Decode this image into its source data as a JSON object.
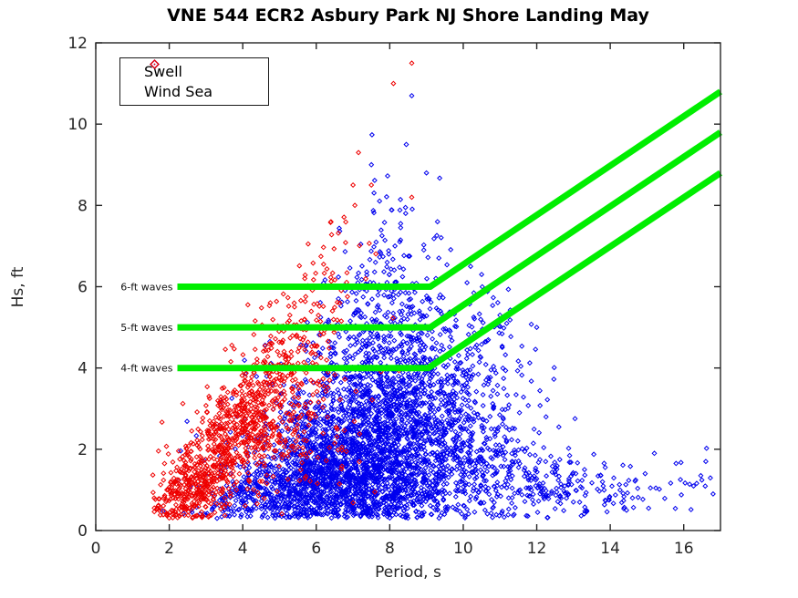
{
  "chart_data": {
    "type": "scatter",
    "title": "VNE 544 ECR2 Asbury Park NJ Shore Landing May",
    "xlabel": "Period, s",
    "ylabel": "Hs, ft",
    "xlim": [
      0,
      17
    ],
    "ylim": [
      0,
      12
    ],
    "xticks": [
      0,
      2,
      4,
      6,
      8,
      10,
      12,
      14,
      16
    ],
    "yticks": [
      0,
      2,
      4,
      6,
      8,
      10,
      12
    ],
    "grid": false,
    "axis_color": "#262626",
    "background": "#ffffff",
    "legend_position": "top-left",
    "seed": 7,
    "series": [
      {
        "name": "Swell",
        "color": "#0000ee",
        "marker": "open-diamond",
        "marker_size": 4.6,
        "clusters": [
          {
            "cx": 7.4,
            "cy": 1.6,
            "sx": 1.55,
            "sy": 0.85,
            "n": 1600
          },
          {
            "cx": 7.8,
            "cy": 2.9,
            "sx": 1.35,
            "sy": 0.85,
            "n": 850
          },
          {
            "cx": 6.3,
            "cy": 1.1,
            "sx": 1.15,
            "sy": 0.5,
            "n": 450
          },
          {
            "cx": 5.0,
            "cy": 0.9,
            "sx": 0.8,
            "sy": 0.45,
            "n": 150
          },
          {
            "cx": 3.6,
            "cy": 0.7,
            "sx": 0.5,
            "sy": 0.35,
            "n": 70
          },
          {
            "cx": 8.0,
            "cy": 4.4,
            "sx": 1.0,
            "sy": 0.8,
            "n": 300
          },
          {
            "cx": 8.1,
            "cy": 5.6,
            "sx": 0.85,
            "sy": 0.7,
            "n": 110
          },
          {
            "cx": 8.2,
            "cy": 6.9,
            "sx": 0.75,
            "sy": 0.75,
            "n": 45
          },
          {
            "cx": 8.2,
            "cy": 8.0,
            "sx": 0.6,
            "sy": 0.5,
            "n": 12
          },
          {
            "cx": 9.6,
            "cy": 3.6,
            "sx": 0.7,
            "sy": 0.9,
            "n": 120
          },
          {
            "cx": 10.6,
            "cy": 4.4,
            "sx": 0.75,
            "sy": 0.85,
            "n": 60
          },
          {
            "cx": 11.5,
            "cy": 3.6,
            "sx": 0.6,
            "sy": 0.6,
            "n": 25
          },
          {
            "cx": 10.9,
            "cy": 1.5,
            "sx": 0.9,
            "sy": 0.65,
            "n": 220
          },
          {
            "cx": 12.3,
            "cy": 1.2,
            "sx": 0.8,
            "sy": 0.45,
            "n": 90
          },
          {
            "cx": 13.9,
            "cy": 1.0,
            "sx": 0.6,
            "sy": 0.3,
            "n": 35
          },
          {
            "cx": 14.6,
            "cy": 0.9,
            "sx": 0.4,
            "sy": 0.25,
            "n": 20
          },
          {
            "cx": 16.1,
            "cy": 1.2,
            "sx": 0.5,
            "sy": 0.4,
            "n": 18
          }
        ],
        "outliers": [
          [
            8.6,
            10.7
          ],
          [
            8.45,
            9.5
          ],
          [
            9.0,
            8.8
          ],
          [
            7.5,
            9.0
          ],
          [
            9.3,
            7.6
          ],
          [
            10.2,
            6.5
          ],
          [
            10.5,
            6.3
          ],
          [
            11.0,
            5.3
          ],
          [
            12.0,
            5.0
          ],
          [
            13.3,
            1.5
          ],
          [
            15.2,
            1.9
          ],
          [
            16.6,
            1.7
          ],
          [
            16.8,
            0.9
          ],
          [
            2.9,
            0.35
          ],
          [
            3.3,
            0.3
          ],
          [
            2.6,
            0.5
          ]
        ]
      },
      {
        "name": "Wind Sea",
        "color": "#ee0000",
        "marker": "open-diamond",
        "marker_size": 4.6,
        "clusters": [
          {
            "cx": 2.2,
            "cy": 0.7,
            "sx": 0.35,
            "sy": 0.3,
            "n": 90
          },
          {
            "cx": 2.7,
            "cy": 1.1,
            "sx": 0.45,
            "sy": 0.45,
            "n": 220
          },
          {
            "cx": 3.4,
            "cy": 1.9,
            "sx": 0.5,
            "sy": 0.55,
            "n": 240
          },
          {
            "cx": 4.1,
            "cy": 2.7,
            "sx": 0.55,
            "sy": 0.6,
            "n": 210
          },
          {
            "cx": 4.8,
            "cy": 3.5,
            "sx": 0.55,
            "sy": 0.65,
            "n": 150
          },
          {
            "cx": 5.4,
            "cy": 4.4,
            "sx": 0.5,
            "sy": 0.6,
            "n": 85
          },
          {
            "cx": 5.9,
            "cy": 5.3,
            "sx": 0.5,
            "sy": 0.6,
            "n": 45
          },
          {
            "cx": 6.3,
            "cy": 6.2,
            "sx": 0.5,
            "sy": 0.55,
            "n": 22
          },
          {
            "cx": 6.6,
            "cy": 7.0,
            "sx": 0.5,
            "sy": 0.5,
            "n": 12
          },
          {
            "cx": 5.3,
            "cy": 2.1,
            "sx": 0.9,
            "sy": 0.75,
            "n": 90
          },
          {
            "cx": 6.5,
            "cy": 3.2,
            "sx": 0.8,
            "sy": 0.7,
            "n": 30
          }
        ],
        "outliers": [
          [
            8.6,
            11.5
          ],
          [
            8.1,
            11.0
          ],
          [
            7.15,
            9.3
          ],
          [
            7.0,
            8.5
          ],
          [
            7.5,
            8.5
          ],
          [
            7.05,
            8.0
          ],
          [
            8.6,
            8.2
          ],
          [
            6.4,
            7.6
          ],
          [
            1.75,
            0.55
          ]
        ]
      }
    ],
    "reference_lines": [
      {
        "label": "6-ft waves",
        "color": "#00ee00",
        "width": 7,
        "points": [
          [
            2.22,
            6
          ],
          [
            9.1,
            6
          ],
          [
            17,
            10.8
          ]
        ]
      },
      {
        "label": "5-ft waves",
        "color": "#00ee00",
        "width": 7,
        "points": [
          [
            2.22,
            5
          ],
          [
            9.1,
            5
          ],
          [
            17,
            9.8
          ]
        ]
      },
      {
        "label": "4-ft waves",
        "color": "#00ee00",
        "width": 7,
        "points": [
          [
            2.22,
            4
          ],
          [
            9.05,
            4
          ],
          [
            17,
            8.8
          ]
        ]
      }
    ]
  }
}
